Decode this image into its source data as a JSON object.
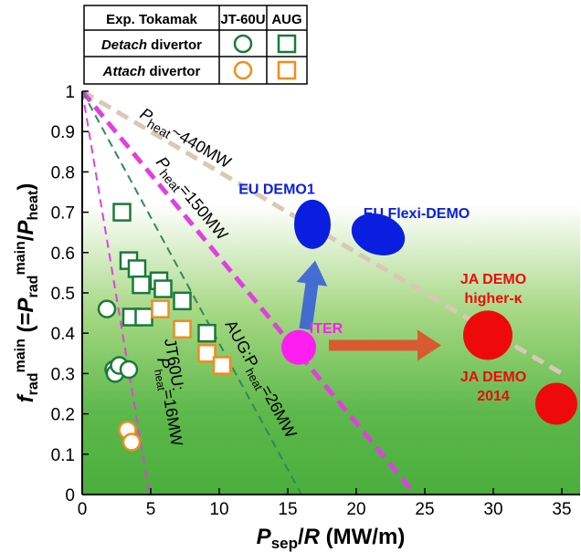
{
  "legend_table": {
    "header": [
      "Exp. Tokamak",
      "JT-60U",
      "AUG"
    ],
    "rows": [
      {
        "label_em": "Detach",
        "label_rest": " divertor",
        "color": "#1a7a3a"
      },
      {
        "label_em": "Attach",
        "label_rest": " divertor",
        "color": "#f28c1e"
      }
    ]
  },
  "chart_data": {
    "type": "scatter",
    "xlabel_main": "P",
    "xlabel_sub": "sep",
    "xlabel_rest": "/",
    "xlabel_R": "R",
    "xlabel_unit": " (MW/m)",
    "ylabel_f": "f",
    "ylabel_fsub": "rad",
    "ylabel_fsup": "main",
    "ylabel_mid": " (=",
    "ylabel_P1": "P",
    "ylabel_P1sub": "rad",
    "ylabel_P1sup": "main",
    "ylabel_slash": "/",
    "ylabel_P2": "P",
    "ylabel_P2sub": "heat",
    "ylabel_close": ")",
    "xlim": [
      0,
      35
    ],
    "ylim": [
      0,
      1
    ],
    "x_ticks": [
      0,
      5,
      10,
      15,
      20,
      25,
      30,
      35
    ],
    "y_ticks": [
      0,
      0.1,
      0.2,
      0.3,
      0.4,
      0.5,
      0.6,
      0.7,
      0.8,
      0.9,
      1
    ],
    "lines": [
      {
        "id": "p440",
        "label_main": "P",
        "label_sub": "heat",
        "label_rest": "~440MW",
        "x_end": 35,
        "y_end": 0.3,
        "color": "#d9c8b4",
        "dash": "thick"
      },
      {
        "id": "p150",
        "label_main": "P",
        "label_sub": "heat",
        "label_rest": "=150MW",
        "x_end": 24.3,
        "y_end": 0,
        "color": "#e040e0",
        "dash": "thick"
      },
      {
        "id": "p26",
        "label_main": "AUG:P",
        "label_sub": "heat",
        "label_rest": "=26MW",
        "x_end": 16,
        "y_end": 0,
        "color": "#2e8b57",
        "dash": "thin"
      },
      {
        "id": "p16",
        "label_main": "JT60U:",
        "label_line2": "P",
        "label_sub": "heat",
        "label_rest": "=16MW",
        "x_end": 4.9,
        "y_end": 0,
        "color": "#e040e0",
        "dash": "thin"
      }
    ],
    "series": [
      {
        "name": "JT-60U Detach",
        "marker": "circle",
        "color": "#1a7a3a",
        "points": [
          [
            1.8,
            0.46
          ],
          [
            2.3,
            0.31
          ],
          [
            2.4,
            0.3
          ],
          [
            2.7,
            0.32
          ],
          [
            3.4,
            0.31
          ]
        ]
      },
      {
        "name": "JT-60U Attach",
        "marker": "circle",
        "color": "#f28c1e",
        "points": [
          [
            3.3,
            0.16
          ],
          [
            3.6,
            0.13
          ]
        ]
      },
      {
        "name": "AUG Detach",
        "marker": "square",
        "color": "#1a7a3a",
        "points": [
          [
            2.9,
            0.7
          ],
          [
            3.4,
            0.58
          ],
          [
            4.0,
            0.56
          ],
          [
            3.6,
            0.44
          ],
          [
            4.5,
            0.44
          ],
          [
            4.3,
            0.52
          ],
          [
            5.6,
            0.53
          ],
          [
            5.9,
            0.51
          ],
          [
            7.3,
            0.48
          ],
          [
            9.1,
            0.4
          ]
        ]
      },
      {
        "name": "AUG Attach",
        "marker": "square",
        "color": "#f28c1e",
        "points": [
          [
            5.7,
            0.46
          ],
          [
            7.3,
            0.41
          ],
          [
            9.1,
            0.35
          ],
          [
            10.2,
            0.32
          ]
        ]
      }
    ],
    "devices": [
      {
        "name": "EU DEMO1",
        "x": 16.8,
        "y": 0.67,
        "rx": 20,
        "ry": 27,
        "rot": 0,
        "color": "#0a1ee0",
        "label_x": 14.2,
        "label_y": 0.745,
        "label_color": "#0a1ee0"
      },
      {
        "name": "EU Flexi-DEMO",
        "x": 21.6,
        "y": 0.645,
        "rx": 30,
        "ry": 22,
        "rot": 20,
        "color": "#0a1ee0",
        "label_x": 24.4,
        "label_y": 0.685,
        "label_color": "#0a1ee0"
      },
      {
        "name": "ITER",
        "x": 15.8,
        "y": 0.365,
        "rx": 19,
        "ry": 19,
        "rot": 0,
        "color": "#ff1ef0",
        "label_x": 17.8,
        "label_y": 0.4,
        "label_color": "#ff1ef0"
      },
      {
        "name": "JA DEMO higher-κ",
        "x": 29.6,
        "y": 0.395,
        "rx": 27,
        "ry": 27,
        "rot": 0,
        "color": "#ee0a0a"
      },
      {
        "name": "JA DEMO 2014",
        "x": 34.6,
        "y": 0.225,
        "rx": 23,
        "ry": 23,
        "rot": 0,
        "color": "#ee0a0a"
      }
    ],
    "ja_higher_label": [
      "JA DEMO",
      "higher-κ"
    ],
    "ja_2014_label": [
      "JA DEMO",
      "2014"
    ],
    "arrows": [
      {
        "from": [
          16.3,
          0.41
        ],
        "to": [
          17.0,
          0.58
        ],
        "color": "#3a63d6"
      },
      {
        "from": [
          18.0,
          0.37
        ],
        "to": [
          26.2,
          0.37
        ],
        "color": "#e0502a"
      }
    ]
  }
}
